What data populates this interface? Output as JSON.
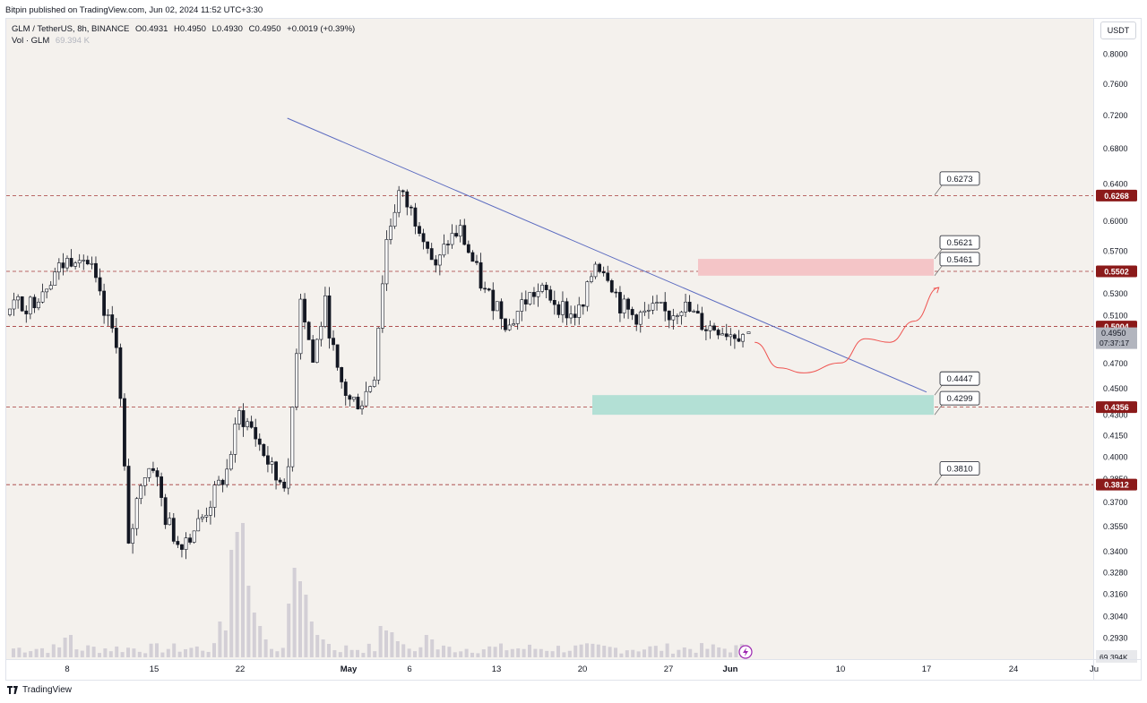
{
  "header": {
    "published": "Bitpin published on TradingView.com, Jun 02, 2024 11:52 UTC+3:30"
  },
  "legend": {
    "symbol": "GLM / TetherUS, 8h, BINANCE",
    "open": "O0.4931",
    "high": "H0.4950",
    "low": "L0.4930",
    "close": "C0.4950",
    "change": "+0.0019 (+0.39%)",
    "vol_label": "Vol · GLM",
    "vol_value": "69.394 K"
  },
  "currency_button": "USDT",
  "footer": {
    "brand": "TradingView"
  },
  "colors": {
    "background": "#f4f1ed",
    "candle_up": "#ffffff",
    "candle_down": "#131722",
    "trendline": "#5b6bc0",
    "level_line": "#a53a3a",
    "level_badge": "#8b1a1a",
    "resistance_zone": "#f4c5c7",
    "support_zone": "#b3e0d5",
    "projection": "#ef5350",
    "volume": "#d3cfd6"
  },
  "chart_data": {
    "type": "candlestick",
    "symbol": "GLM/USDT",
    "interval": "8h",
    "y_scale": "log",
    "ylim": [
      0.288,
      0.83
    ],
    "x_tick_labels": [
      "8",
      "15",
      "22",
      "May",
      "6",
      "13",
      "20",
      "27",
      "Jun",
      "10",
      "17",
      "24",
      "Ju"
    ],
    "y_tick_labels": [
      "0.8000",
      "0.7600",
      "0.7200",
      "0.6800",
      "0.6400",
      "0.6000",
      "0.5700",
      "0.5300",
      "0.5100",
      "0.4700",
      "0.4500",
      "0.4300",
      "0.4150",
      "0.4000",
      "0.3850",
      "0.3700",
      "0.3550",
      "0.3400",
      "0.3280",
      "0.3160",
      "0.3040",
      "0.2930"
    ],
    "current_price": {
      "price": "0.4950",
      "countdown": "07:37:17"
    },
    "volume_label": "69.394K",
    "levels": [
      "0.6268",
      "0.5502",
      "0.5004",
      "0.4356",
      "0.3812"
    ],
    "annotations": [
      "0.6273",
      "0.5621",
      "0.5461",
      "0.4447",
      "0.4299",
      "0.3810"
    ],
    "zones": [
      {
        "name": "resistance",
        "from": 0.5461,
        "to": 0.5621
      },
      {
        "name": "support",
        "from": 0.4299,
        "to": 0.4447
      }
    ],
    "trendline": {
      "from": {
        "date": "Apr 29",
        "price": 0.69
      },
      "to": {
        "date": "Jun 17",
        "price": 0.447
      }
    },
    "price_path": [
      {
        "date": "Apr 3",
        "price": 0.52
      },
      {
        "date": "Apr 5",
        "price": 0.52
      },
      {
        "date": "Apr 7",
        "price": 0.55
      },
      {
        "date": "Apr 9",
        "price": 0.57
      },
      {
        "date": "Apr 10",
        "price": 0.55
      },
      {
        "date": "Apr 11",
        "price": 0.51
      },
      {
        "date": "Apr 12",
        "price": 0.49
      },
      {
        "date": "Apr 13",
        "price": 0.34
      },
      {
        "date": "Apr 14",
        "price": 0.385
      },
      {
        "date": "Apr 15",
        "price": 0.395
      },
      {
        "date": "Apr 16",
        "price": 0.36
      },
      {
        "date": "Apr 17",
        "price": 0.345
      },
      {
        "date": "Apr 18",
        "price": 0.35
      },
      {
        "date": "Apr 19",
        "price": 0.36
      },
      {
        "date": "Apr 21",
        "price": 0.39
      },
      {
        "date": "Apr 22",
        "price": 0.43
      },
      {
        "date": "Apr 23",
        "price": 0.42
      },
      {
        "date": "Apr 25",
        "price": 0.385
      },
      {
        "date": "Apr 26",
        "price": 0.385
      },
      {
        "date": "Apr 27",
        "price": 0.53
      },
      {
        "date": "Apr 28",
        "price": 0.47
      },
      {
        "date": "Apr 29",
        "price": 0.52
      },
      {
        "date": "Apr 30",
        "price": 0.46
      },
      {
        "date": "May 1",
        "price": 0.44
      },
      {
        "date": "May 2",
        "price": 0.44
      },
      {
        "date": "May 3",
        "price": 0.46
      },
      {
        "date": "May 4",
        "price": 0.58
      },
      {
        "date": "May 5",
        "price": 0.63
      },
      {
        "date": "May 6",
        "price": 0.61
      },
      {
        "date": "May 7",
        "price": 0.59
      },
      {
        "date": "May 8",
        "price": 0.55
      },
      {
        "date": "May 9",
        "price": 0.58
      },
      {
        "date": "May 10",
        "price": 0.59
      },
      {
        "date": "May 11",
        "price": 0.56
      },
      {
        "date": "May 12",
        "price": 0.53
      },
      {
        "date": "May 13",
        "price": 0.52
      },
      {
        "date": "May 14",
        "price": 0.5
      },
      {
        "date": "May 15",
        "price": 0.52
      },
      {
        "date": "May 16",
        "price": 0.53
      },
      {
        "date": "May 17",
        "price": 0.53
      },
      {
        "date": "May 19",
        "price": 0.51
      },
      {
        "date": "May 20",
        "price": 0.515
      },
      {
        "date": "May 21",
        "price": 0.56
      },
      {
        "date": "May 22",
        "price": 0.55
      },
      {
        "date": "May 23",
        "price": 0.52
      },
      {
        "date": "May 24",
        "price": 0.51
      },
      {
        "date": "May 25",
        "price": 0.51
      },
      {
        "date": "May 26",
        "price": 0.515
      },
      {
        "date": "May 27",
        "price": 0.51
      },
      {
        "date": "May 28",
        "price": 0.52
      },
      {
        "date": "May 29",
        "price": 0.51
      },
      {
        "date": "May 30",
        "price": 0.5
      },
      {
        "date": "May 31",
        "price": 0.5
      },
      {
        "date": "Jun 1",
        "price": 0.495
      },
      {
        "date": "Jun 2",
        "price": 0.495
      }
    ],
    "projection": [
      {
        "date": "Jun 3",
        "price": 0.487
      },
      {
        "date": "Jun 5",
        "price": 0.466
      },
      {
        "date": "Jun 7",
        "price": 0.462
      },
      {
        "date": "Jun 10",
        "price": 0.47
      },
      {
        "date": "Jun 12",
        "price": 0.49
      },
      {
        "date": "Jun 14",
        "price": 0.487
      },
      {
        "date": "Jun 16",
        "price": 0.505
      },
      {
        "date": "Jun 18",
        "price": 0.535
      }
    ]
  }
}
